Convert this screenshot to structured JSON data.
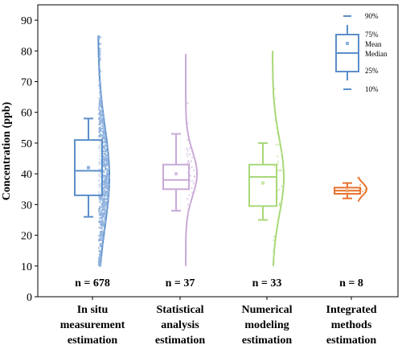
{
  "chart_data": {
    "type": "box-violin",
    "ylabel": "Concentration (ppb)",
    "ylim": [
      0,
      95
    ],
    "yticks": [
      0,
      10,
      20,
      30,
      40,
      50,
      60,
      70,
      80,
      90
    ],
    "categories": [
      {
        "lines": [
          "In situ",
          "measurement",
          "estimation"
        ],
        "n_label": "n = 678",
        "n": 678,
        "color": "#5b8fc9",
        "point_color": "#8fb2de",
        "p10": 26,
        "q1": 33,
        "median": 41,
        "mean": 42,
        "q3": 51,
        "p90": 58,
        "min": 10,
        "max": 85,
        "density_peak": 39
      },
      {
        "lines": [
          "Statistical",
          "analysis",
          "estimation"
        ],
        "n_label": "n = 37",
        "n": 37,
        "color": "#c9a9d8",
        "point_color": "#d8c2e3",
        "p10": 28,
        "q1": 35,
        "median": 38,
        "mean": 40,
        "q3": 43,
        "p90": 53,
        "min": 10,
        "max": 79,
        "density_peak": 40
      },
      {
        "lines": [
          "Numerical",
          "modeling",
          "estimation"
        ],
        "n_label": "n = 33",
        "n": 33,
        "color": "#a8d878",
        "point_color": "#c4e6a5",
        "p10": 25,
        "q1": 29.5,
        "median": 39,
        "mean": 37,
        "q3": 43,
        "p90": 50,
        "min": 10,
        "max": 80,
        "density_peak": 39
      },
      {
        "lines": [
          "Integrated",
          "methods",
          "estimation"
        ],
        "n_label": "n = 8",
        "n": 8,
        "color": "#e8732e",
        "point_color": "#f0a46e",
        "p10": 32,
        "q1": 33.5,
        "median": 34.5,
        "mean": 34.5,
        "q3": 35.5,
        "p90": 37,
        "min": 31,
        "max": 39,
        "density_peak": 35
      }
    ],
    "legend": {
      "position": "top-right",
      "labels": {
        "p90": "90%",
        "q3": "75%",
        "mean": "Mean",
        "median": "Median",
        "q1": "25%",
        "p10": "10%"
      }
    },
    "grid": false
  }
}
